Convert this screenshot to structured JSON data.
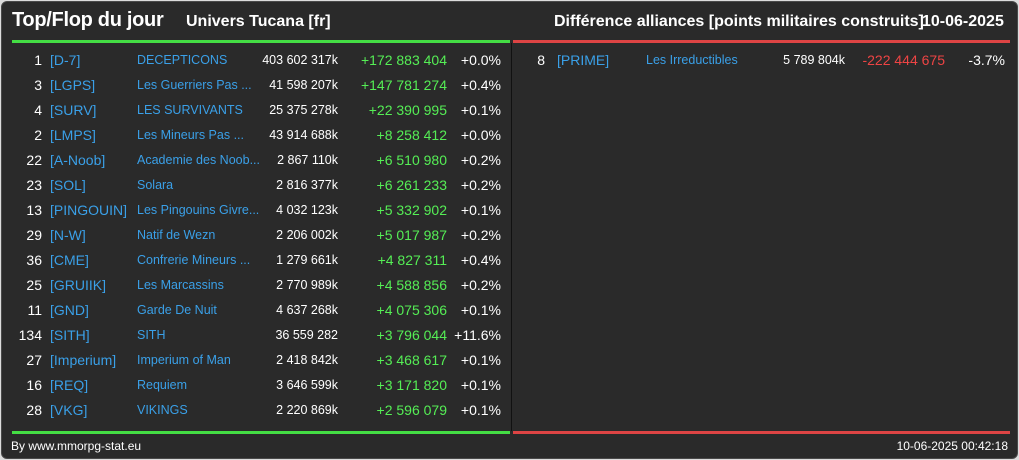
{
  "header": {
    "title": "Top/Flop du jour",
    "universe": "Univers Tucana [fr]",
    "subtitle": "Différence alliances [points militaires construits]",
    "date": "10-06-2025"
  },
  "colors": {
    "background": "#2a2a2a",
    "tag_link": "#3aa0e8",
    "positive": "#55ee55",
    "negative": "#ee4444",
    "top_bar": "#44dd44",
    "flop_bar": "#dd4444"
  },
  "top": [
    {
      "rank": "1",
      "tag": "[D-7]",
      "name": "DECEPTICONS",
      "points": "403 602 317k",
      "diff": "+172 883 404",
      "pct": "+0.0%"
    },
    {
      "rank": "3",
      "tag": "[LGPS]",
      "name": "Les Guerriers Pas ...",
      "points": "41 598 207k",
      "diff": "+147 781 274",
      "pct": "+0.4%"
    },
    {
      "rank": "4",
      "tag": "[SURV]",
      "name": "LES SURVIVANTS",
      "points": "25 375 278k",
      "diff": "+22 390 995",
      "pct": "+0.1%"
    },
    {
      "rank": "2",
      "tag": "[LMPS]",
      "name": "Les Mineurs Pas ...",
      "points": "43 914 688k",
      "diff": "+8 258 412",
      "pct": "+0.0%"
    },
    {
      "rank": "22",
      "tag": "[A-Noob]",
      "name": "Academie des Noob...",
      "points": "2 867 110k",
      "diff": "+6 510 980",
      "pct": "+0.2%"
    },
    {
      "rank": "23",
      "tag": "[SOL]",
      "name": "Solara",
      "points": "2 816 377k",
      "diff": "+6 261 233",
      "pct": "+0.2%"
    },
    {
      "rank": "13",
      "tag": "[PINGOUIN]",
      "name": "Les Pingouins Givre...",
      "points": "4 032 123k",
      "diff": "+5 332 902",
      "pct": "+0.1%"
    },
    {
      "rank": "29",
      "tag": "[N-W]",
      "name": "Natif de Wezn",
      "points": "2 206 002k",
      "diff": "+5 017 987",
      "pct": "+0.2%"
    },
    {
      "rank": "36",
      "tag": "[CME]",
      "name": "Confrerie Mineurs ...",
      "points": "1 279 661k",
      "diff": "+4 827 311",
      "pct": "+0.4%"
    },
    {
      "rank": "25",
      "tag": "[GRUIIK]",
      "name": "Les Marcassins",
      "points": "2 770 989k",
      "diff": "+4 588 856",
      "pct": "+0.2%"
    },
    {
      "rank": "11",
      "tag": "[GND]",
      "name": "Garde De Nuit",
      "points": "4 637 268k",
      "diff": "+4 075 306",
      "pct": "+0.1%"
    },
    {
      "rank": "134",
      "tag": "[SITH]",
      "name": "SITH",
      "points": "36 559 282",
      "diff": "+3 796 044",
      "pct": "+11.6%"
    },
    {
      "rank": "27",
      "tag": "[Imperium]",
      "name": "Imperium of Man",
      "points": "2 418 842k",
      "diff": "+3 468 617",
      "pct": "+0.1%"
    },
    {
      "rank": "16",
      "tag": "[REQ]",
      "name": "Requiem",
      "points": "3 646 599k",
      "diff": "+3 171 820",
      "pct": "+0.1%"
    },
    {
      "rank": "28",
      "tag": "[VKG]",
      "name": "VIKINGS",
      "points": "2 220 869k",
      "diff": "+2 596 079",
      "pct": "+0.1%"
    }
  ],
  "flop": [
    {
      "rank": "8",
      "tag": "[PRIME]",
      "name": "Les Irreductibles",
      "points": "5 789 804k",
      "diff": "-222 444 675",
      "pct": "-3.7%"
    }
  ],
  "footer": {
    "credit": "By www.mmorpg-stat.eu",
    "timestamp": "10-06-2025 00:42:18"
  }
}
